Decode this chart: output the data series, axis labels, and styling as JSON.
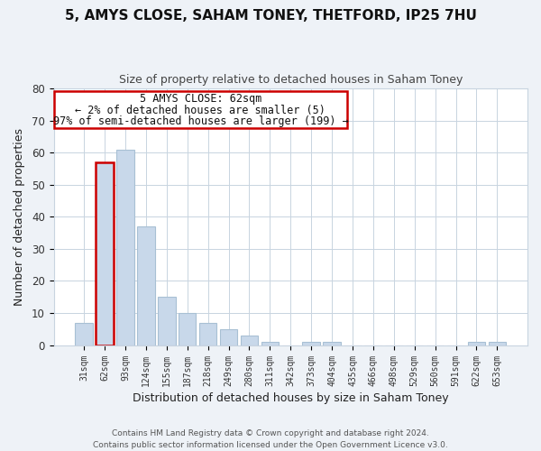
{
  "title": "5, AMYS CLOSE, SAHAM TONEY, THETFORD, IP25 7HU",
  "subtitle": "Size of property relative to detached houses in Saham Toney",
  "xlabel": "Distribution of detached houses by size in Saham Toney",
  "ylabel": "Number of detached properties",
  "bar_color": "#c8d8ea",
  "bar_edge_color": "#a8c0d4",
  "highlight_bar_index": 1,
  "highlight_edge_color": "#cc0000",
  "categories": [
    "31sqm",
    "62sqm",
    "93sqm",
    "124sqm",
    "155sqm",
    "187sqm",
    "218sqm",
    "249sqm",
    "280sqm",
    "311sqm",
    "342sqm",
    "373sqm",
    "404sqm",
    "435sqm",
    "466sqm",
    "498sqm",
    "529sqm",
    "560sqm",
    "591sqm",
    "622sqm",
    "653sqm"
  ],
  "values": [
    7,
    57,
    61,
    37,
    15,
    10,
    7,
    5,
    3,
    1,
    0,
    1,
    1,
    0,
    0,
    0,
    0,
    0,
    0,
    1,
    1
  ],
  "ylim": [
    0,
    80
  ],
  "yticks": [
    0,
    10,
    20,
    30,
    40,
    50,
    60,
    70,
    80
  ],
  "annotation_line1": "5 AMYS CLOSE: 62sqm",
  "annotation_line2": "← 2% of detached houses are smaller (5)",
  "annotation_line3": "97% of semi-detached houses are larger (199) →",
  "footer_line1": "Contains HM Land Registry data © Crown copyright and database right 2024.",
  "footer_line2": "Contains public sector information licensed under the Open Government Licence v3.0.",
  "background_color": "#eef2f7",
  "plot_background_color": "#ffffff",
  "grid_color": "#c8d4e0"
}
